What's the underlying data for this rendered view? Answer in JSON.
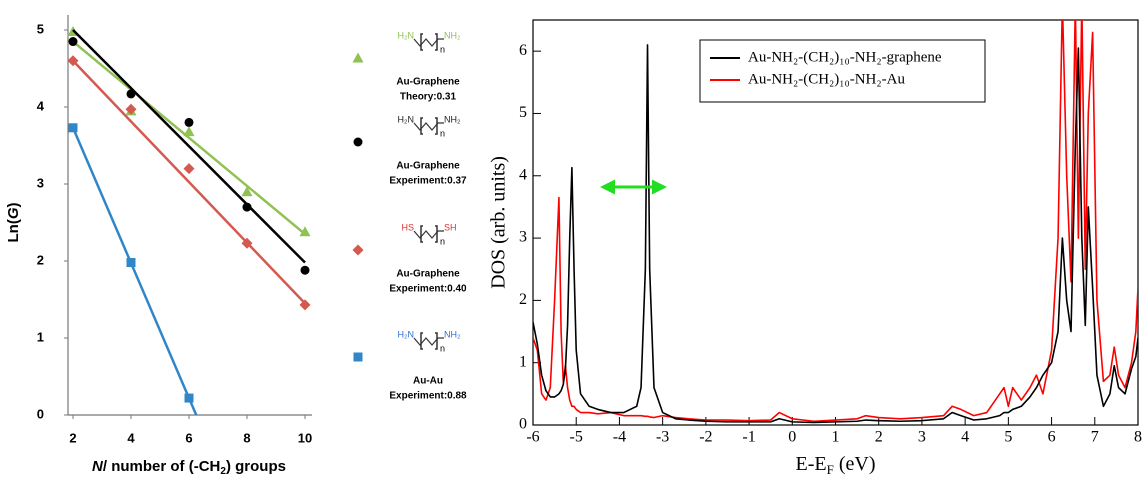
{
  "chart_data": [
    {
      "type": "scatter",
      "y_label_parts": [
        "Ln(",
        "G",
        ")"
      ],
      "x_label_parts": [
        "N",
        "/ number of (-CH",
        "2",
        ") groups"
      ],
      "xlim": [
        2,
        10
      ],
      "ylim": [
        0,
        5
      ],
      "xticks": [
        2,
        4,
        6,
        8,
        10
      ],
      "yticks": [
        0,
        1,
        2,
        3,
        4,
        5
      ],
      "series": [
        {
          "name": "Au-Graphene",
          "label": "Theory:0.31",
          "color": "#8fc153",
          "marker": "triangle",
          "left_group": "H₂N",
          "right_group": "NH₂",
          "n": "n",
          "group_color": "#8fc153",
          "x": [
            2,
            4,
            6,
            8,
            10
          ],
          "values": [
            4.98,
            3.95,
            3.68,
            2.9,
            2.38
          ],
          "fit_x": [
            2,
            10
          ],
          "fit_values": [
            4.85,
            2.35
          ]
        },
        {
          "name": "Au-Graphene",
          "label": "Experiment:0.37",
          "color": "#000000",
          "marker": "circle",
          "left_group": "H₂N",
          "right_group": "NH₂",
          "n": "n",
          "group_color": "#222222",
          "x": [
            2,
            4,
            6,
            8,
            10
          ],
          "values": [
            4.85,
            4.17,
            3.8,
            2.7,
            1.88
          ],
          "fit_x": [
            2,
            10
          ],
          "fit_values": [
            5.0,
            1.98
          ]
        },
        {
          "name": "Au-Graphene",
          "label": "Experiment:0.40",
          "color": "#d4594f",
          "marker": "diamond",
          "left_group": "HS",
          "right_group": "SH",
          "n": "n",
          "group_color": "#e03030",
          "x": [
            2,
            4,
            6,
            8,
            10
          ],
          "values": [
            4.6,
            3.97,
            3.2,
            2.23,
            1.43
          ],
          "fit_x": [
            2,
            10
          ],
          "fit_values": [
            4.6,
            1.45
          ]
        },
        {
          "name": "Au-Au",
          "label": "Experiment:0.88",
          "color": "#2f86c8",
          "marker": "square",
          "left_group": "H₂N",
          "right_group": "NH₂",
          "n": "n",
          "group_color": "#2f6fd0",
          "x": [
            2,
            4,
            6
          ],
          "values": [
            3.73,
            1.98,
            0.22
          ],
          "fit_x": [
            2,
            6.25
          ],
          "fit_values": [
            3.73,
            0
          ]
        }
      ]
    },
    {
      "type": "line",
      "y_label": "DOS (arb. units)",
      "x_label_parts": [
        "E-E",
        "F",
        " (eV)"
      ],
      "xlim": [
        -6,
        8
      ],
      "ylim": [
        0,
        6.5
      ],
      "xticks": [
        -6,
        -5,
        -4,
        -3,
        -2,
        -1,
        0,
        1,
        2,
        3,
        4,
        5,
        6,
        7,
        8
      ],
      "yticks": [
        0,
        1,
        2,
        3,
        4,
        5,
        6
      ],
      "x": [
        -6,
        -5.9,
        -5.8,
        -5.7,
        -5.6,
        -5.5,
        -5.4,
        -5.35,
        -5.3,
        -5.25,
        -5.2,
        -5.15,
        -5.1,
        -5.05,
        -5.0,
        -4.9,
        -4.7,
        -4.5,
        -4.2,
        -3.9,
        -3.6,
        -3.5,
        -3.4,
        -3.35,
        -3.3,
        -3.2,
        -3.0,
        -2.7,
        -2.4,
        -2,
        -1.5,
        -1,
        -0.5,
        -0.3,
        0,
        0.5,
        1,
        1.5,
        1.7,
        2,
        2.5,
        3,
        3.5,
        3.7,
        3.9,
        4.2,
        4.5,
        4.8,
        4.9,
        5.0,
        5.1,
        5.3,
        5.5,
        5.65,
        5.8,
        6.0,
        6.15,
        6.25,
        6.35,
        6.45,
        6.55,
        6.62,
        6.7,
        6.78,
        6.85,
        6.95,
        7.05,
        7.2,
        7.35,
        7.45,
        7.55,
        7.7,
        7.85,
        7.95,
        8
      ],
      "series": [
        {
          "name": "Au-NH₂-(CH₂)₁₀-NH₂-graphene",
          "color": "#000000",
          "values": [
            1.65,
            1.3,
            0.8,
            0.55,
            0.45,
            0.45,
            0.5,
            0.55,
            0.65,
            0.9,
            1.6,
            3.0,
            4.13,
            2.5,
            1.2,
            0.5,
            0.3,
            0.25,
            0.2,
            0.2,
            0.3,
            0.6,
            2.5,
            6.1,
            2.5,
            0.6,
            0.2,
            0.1,
            0.08,
            0.06,
            0.05,
            0.05,
            0.05,
            0.1,
            0.05,
            0.04,
            0.05,
            0.06,
            0.08,
            0.07,
            0.06,
            0.07,
            0.1,
            0.2,
            0.15,
            0.08,
            0.1,
            0.15,
            0.2,
            0.2,
            0.25,
            0.3,
            0.45,
            0.6,
            0.8,
            1.0,
            1.5,
            3.0,
            2.0,
            1.5,
            4.5,
            6.05,
            3.0,
            1.6,
            3.5,
            2.2,
            0.8,
            0.3,
            0.5,
            0.95,
            0.6,
            0.5,
            0.9,
            1.1,
            1.4
          ]
        },
        {
          "name": "Au-NH₂-(CH₂)₁₀-NH₂-Au",
          "color": "#ff0000",
          "values": [
            1.4,
            1.2,
            0.5,
            0.4,
            0.6,
            2.0,
            3.65,
            1.5,
            0.7,
            0.95,
            0.6,
            0.4,
            0.3,
            0.3,
            0.25,
            0.2,
            0.2,
            0.18,
            0.2,
            0.15,
            0.15,
            0.15,
            0.14,
            0.14,
            0.13,
            0.12,
            0.15,
            0.12,
            0.1,
            0.08,
            0.08,
            0.07,
            0.08,
            0.2,
            0.1,
            0.06,
            0.08,
            0.1,
            0.15,
            0.12,
            0.1,
            0.12,
            0.15,
            0.3,
            0.25,
            0.15,
            0.2,
            0.5,
            0.6,
            0.3,
            0.6,
            0.4,
            0.6,
            0.8,
            0.5,
            1.2,
            3,
            6.8,
            4,
            2.3,
            6.8,
            3,
            6.8,
            2.5,
            5,
            6.3,
            2,
            0.7,
            0.8,
            1.25,
            0.8,
            0.6,
            1.0,
            1.5,
            2.2
          ]
        }
      ]
    }
  ]
}
